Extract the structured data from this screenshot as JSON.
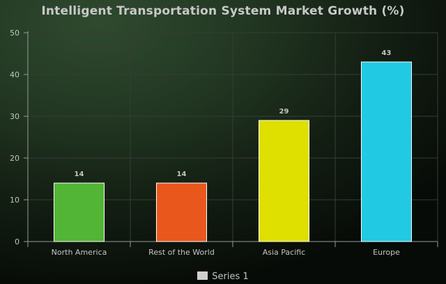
{
  "chart_data": {
    "type": "bar",
    "title": "Intelligent Transportation System Market Growth (%)",
    "categories": [
      "North America",
      "Rest of the World",
      "Asia Pacific",
      "Europe"
    ],
    "series": [
      {
        "name": "Series 1",
        "values": [
          14,
          14,
          29,
          43
        ],
        "colors": [
          "#52b535",
          "#ea571d",
          "#dfe000",
          "#22c9e2"
        ]
      }
    ],
    "ylim": [
      0,
      50
    ],
    "yticks": [
      0,
      10,
      20,
      30,
      40,
      50
    ],
    "data_labels": [
      "14",
      "14",
      "29",
      "43"
    ],
    "grid": true,
    "legend": "bottom-center"
  },
  "colors": {
    "axis": "#9a9a9a",
    "grid": "#3a3a3a",
    "bar_stroke": "#ffffff",
    "text": "#c4c4c4"
  }
}
